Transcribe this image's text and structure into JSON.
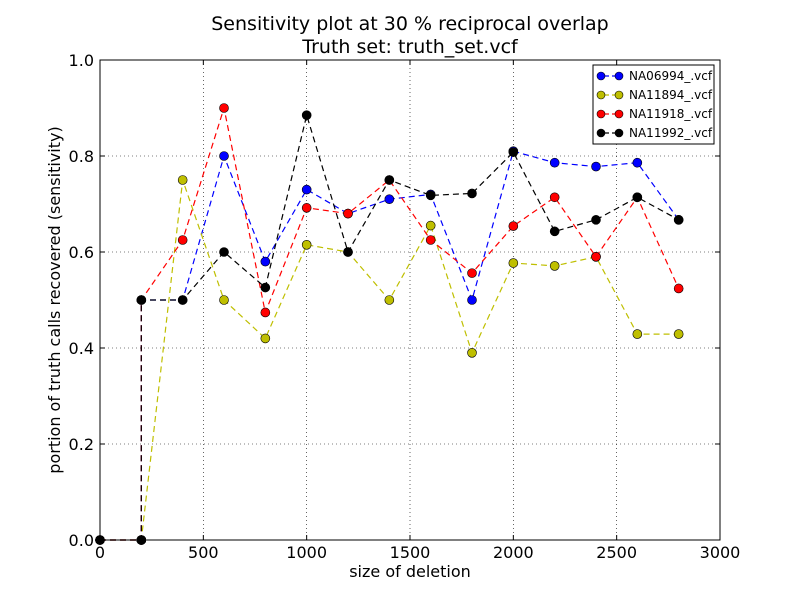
{
  "chart_data": {
    "type": "line",
    "title": "Sensitivity plot at 30 % reciprocal overlap",
    "subtitle": "Truth set: truth_set.vcf",
    "xlabel": "size of deletion",
    "ylabel": "portion of truth calls recovered (sensitivity)",
    "xlim": [
      0,
      3000
    ],
    "ylim": [
      0.0,
      1.0
    ],
    "xticks": [
      "0",
      "500",
      "1000",
      "1500",
      "2000",
      "2500",
      "3000"
    ],
    "yticks": [
      "0.0",
      "0.2",
      "0.4",
      "0.6",
      "0.8",
      "1.0"
    ],
    "grid": true,
    "legend_position": "top-right",
    "series": [
      {
        "name": "NA06994_.vcf",
        "color": "#0000ff",
        "x": [
          0,
          200,
          200,
          400,
          600,
          800,
          1000,
          1200,
          1400,
          1600,
          1800,
          2000,
          2200,
          2400,
          2600,
          2800
        ],
        "y": [
          0.0,
          0.0,
          0.5,
          0.5,
          0.8,
          0.58,
          0.73,
          0.68,
          0.71,
          0.72,
          0.5,
          0.81,
          0.786,
          0.778,
          0.786,
          0.667
        ]
      },
      {
        "name": "NA11894_.vcf",
        "color": "#bfbf00",
        "x": [
          0,
          200,
          200,
          400,
          600,
          800,
          1000,
          1200,
          1400,
          1600,
          1800,
          2000,
          2200,
          2400,
          2600,
          2800
        ],
        "y": [
          0.0,
          0.0,
          0.0,
          0.75,
          0.5,
          0.42,
          0.615,
          0.6,
          0.5,
          0.655,
          0.39,
          0.577,
          0.571,
          0.59,
          0.429,
          0.429
        ]
      },
      {
        "name": "NA11918_.vcf",
        "color": "#ff0000",
        "x": [
          0,
          200,
          200,
          400,
          600,
          800,
          1000,
          1200,
          1400,
          1600,
          1800,
          2000,
          2200,
          2400,
          2600,
          2800
        ],
        "y": [
          0.0,
          0.0,
          0.5,
          0.625,
          0.9,
          0.474,
          0.692,
          0.68,
          0.75,
          0.625,
          0.556,
          0.654,
          0.714,
          0.59,
          0.714,
          0.524
        ]
      },
      {
        "name": "NA11992_.vcf",
        "color": "#000000",
        "x": [
          0,
          200,
          200,
          400,
          600,
          800,
          1000,
          1200,
          1400,
          1600,
          1800,
          2000,
          2200,
          2400,
          2600,
          2800
        ],
        "y": [
          0.0,
          0.0,
          0.5,
          0.5,
          0.6,
          0.526,
          0.885,
          0.6,
          0.75,
          0.718,
          0.722,
          0.808,
          0.643,
          0.667,
          0.714,
          0.667
        ]
      }
    ]
  }
}
